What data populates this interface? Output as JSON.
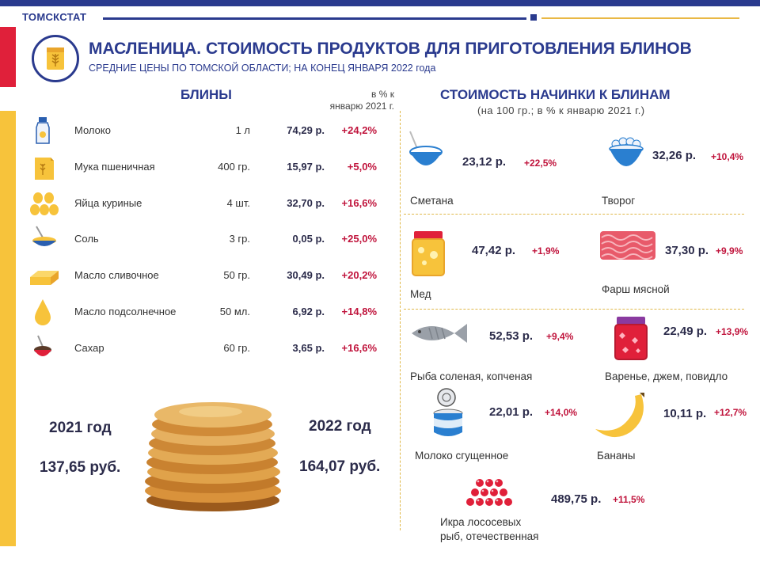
{
  "header": {
    "brand": "ТОМСКСТАТ",
    "title": "МАСЛЕНИЦА. СТОИМОСТЬ ПРОДУКТОВ ДЛЯ ПРИГОТОВЛЕНИЯ БЛИНОВ",
    "subtitle": "СРЕДНИЕ ЦЕНЫ ПО ТОМСКОЙ ОБЛАСТИ; НА КОНЕЦ ЯНВАРЯ 2022 года"
  },
  "colors": {
    "navy": "#2a3a8e",
    "red": "#e0203a",
    "yellow": "#f7c33b",
    "pct": "#c0143c"
  },
  "blini": {
    "heading": "БЛИНЫ",
    "pct_heading_1": "в % к",
    "pct_heading_2": "январю 2021 г.",
    "items": [
      {
        "icon": "milk-bottle-icon",
        "name": "Молоко",
        "qty": "1 л",
        "price": "74,29 р.",
        "pct": "+24,2%"
      },
      {
        "icon": "flour-bag-icon",
        "name": "Мука пшеничная",
        "qty": "400 гр.",
        "price": "15,97 р.",
        "pct": "+5,0%"
      },
      {
        "icon": "eggs-icon",
        "name": "Яйца куриные",
        "qty": "4 шт.",
        "price": "32,70 р.",
        "pct": "+16,6%"
      },
      {
        "icon": "salt-bowl-icon",
        "name": "Соль",
        "qty": "3 гр.",
        "price": "0,05 р.",
        "pct": "+25,0%"
      },
      {
        "icon": "butter-icon",
        "name": "Масло сливочное",
        "qty": "50 гр.",
        "price": "30,49 р.",
        "pct": "+20,2%"
      },
      {
        "icon": "oil-drop-icon",
        "name": "Масло подсолнечное",
        "qty": "50 мл.",
        "price": "6,92 р.",
        "pct": "+14,8%"
      },
      {
        "icon": "sugar-bowl-icon",
        "name": "Сахар",
        "qty": "60 гр.",
        "price": "3,65 р.",
        "pct": "+16,6%"
      }
    ],
    "year_2021": "2021 год",
    "sum_2021": "137,65 руб.",
    "year_2022": "2022 год",
    "sum_2022": "164,07 руб."
  },
  "fillings": {
    "heading": "СТОИМОСТЬ НАЧИНКИ К БЛИНАМ",
    "subheading": "(на 100 гр.; в % к январю 2021 г.)",
    "items": [
      {
        "icon": "sour-cream-icon",
        "name": "Сметана",
        "price": "23,12 р.",
        "pct": "+22,5%"
      },
      {
        "icon": "cottage-cheese-icon",
        "name": "Творог",
        "price": "32,26 р.",
        "pct": "+10,4%"
      },
      {
        "icon": "honey-jar-icon",
        "name": "Мед",
        "price": "47,42 р.",
        "pct": "+1,9%"
      },
      {
        "icon": "minced-meat-icon",
        "name": "Фарш мясной",
        "price": "37,30 р.",
        "pct": "+9,9%"
      },
      {
        "icon": "fish-icon",
        "name": "Рыба соленая, копченая",
        "price": "52,53 р.",
        "pct": "+9,4%"
      },
      {
        "icon": "jam-jar-icon",
        "name": "Варенье, джем, повидло",
        "price": "22,49 р.",
        "pct": "+13,9%"
      },
      {
        "icon": "condensed-milk-icon",
        "name": "Молоко сгущенное",
        "price": "22,01 р.",
        "pct": "+14,0%"
      },
      {
        "icon": "banana-icon",
        "name": "Бананы",
        "price": "10,11 р.",
        "pct": "+12,7%"
      },
      {
        "icon": "caviar-icon",
        "name_1": "Икра лососевых",
        "name_2": "рыб, отечественная",
        "price": "489,75 р.",
        "pct": "+11,5%"
      }
    ]
  }
}
